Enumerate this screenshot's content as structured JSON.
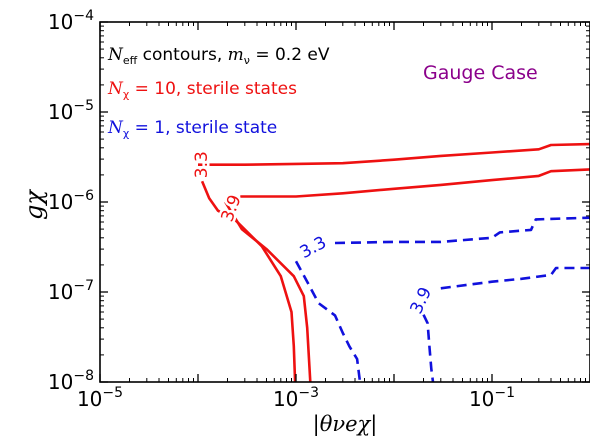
{
  "chart_data": {
    "type": "line",
    "title": "",
    "xlabel": "|θνeχ|",
    "ylabel": "gχ",
    "x_scale": "log",
    "y_scale": "log",
    "xlim": [
      1e-05,
      1.0
    ],
    "ylim": [
      1e-08,
      0.0001
    ],
    "x_ticks": [
      {
        "value": 1e-05,
        "base": "10",
        "exp": "−5"
      },
      {
        "value": 0.001,
        "base": "10",
        "exp": "−3"
      },
      {
        "value": 0.1,
        "base": "10",
        "exp": "−1"
      }
    ],
    "y_ticks": [
      {
        "value": 1e-08,
        "base": "10",
        "exp": "−8"
      },
      {
        "value": 1e-07,
        "base": "10",
        "exp": "−7"
      },
      {
        "value": 1e-06,
        "base": "10",
        "exp": "−6"
      },
      {
        "value": 1e-05,
        "base": "10",
        "exp": "−5"
      },
      {
        "value": 0.0001,
        "base": "10",
        "exp": "−4"
      }
    ],
    "grid": false,
    "legend_placement": "top-left",
    "annotations": {
      "neff_prefix": "N",
      "neff_sub": "eff",
      "neff_mid": " contours, ",
      "mnu_prefix": "m",
      "mnu_sub": "ν",
      "mnu_suffix": " = 0.2 eV",
      "red_prefix": "N",
      "red_sub": "χ",
      "red_suffix": " = 10, sterile states",
      "blue_prefix": "N",
      "blue_sub": "χ",
      "blue_suffix": " = 1, sterile state",
      "gauge_case": "Gauge Case"
    },
    "colors": {
      "red": "#ee1111",
      "blue": "#1111dd",
      "purple": "#8b008b"
    },
    "series": [
      {
        "group": "N_chi = 10",
        "contour": "3.3",
        "color": "red",
        "dash": "solid",
        "points": [
          [
            0.0001,
            2.6e-06
          ],
          [
            0.0003,
            2.6e-06
          ],
          [
            0.001,
            2.65e-06
          ],
          [
            0.003,
            2.7e-06
          ],
          [
            0.01,
            2.95e-06
          ],
          [
            0.03,
            3.25e-06
          ],
          [
            0.1,
            3.55e-06
          ],
          [
            0.3,
            3.85e-06
          ],
          [
            0.4,
            4.3e-06
          ],
          [
            1.0,
            4.4e-06
          ]
        ]
      },
      {
        "group": "N_chi = 10",
        "contour": "3.9",
        "color": "red",
        "dash": "solid",
        "points": [
          [
            0.00027,
            1.15e-06
          ],
          [
            0.001,
            1.15e-06
          ],
          [
            0.003,
            1.25e-06
          ],
          [
            0.01,
            1.4e-06
          ],
          [
            0.03,
            1.55e-06
          ],
          [
            0.1,
            1.75e-06
          ],
          [
            0.3,
            1.95e-06
          ],
          [
            0.4,
            2.2e-06
          ],
          [
            1.0,
            2.3e-06
          ]
        ]
      },
      {
        "group": "N_chi = 10",
        "contour": "3.3",
        "color": "red",
        "dash": "solid",
        "points": [
          [
            0.00011,
            1.7e-06
          ],
          [
            0.00013,
            1.1e-06
          ],
          [
            0.00016,
            8e-07
          ],
          [
            0.00024,
            6.3e-07
          ],
          [
            0.00045,
            3.2e-07
          ],
          [
            0.0007,
            1.5e-07
          ],
          [
            0.0009,
            6e-08
          ],
          [
            0.00095,
            2.5e-08
          ],
          [
            0.00098,
            1e-08
          ]
        ]
      },
      {
        "group": "N_chi = 10",
        "contour": "3.9",
        "color": "red",
        "dash": "solid",
        "points": [
          [
            0.00019,
            1e-06
          ],
          [
            0.00028,
            5e-07
          ],
          [
            0.0005,
            3e-07
          ],
          [
            0.00095,
            1.5e-07
          ],
          [
            0.0012,
            9e-08
          ],
          [
            0.0013,
            4e-08
          ],
          [
            0.0014,
            1e-08
          ]
        ]
      },
      {
        "group": "N_chi = 1",
        "contour": "3.3",
        "color": "blue",
        "dash": "dashed",
        "points": [
          [
            0.0025,
            3.5e-07
          ],
          [
            0.01,
            3.6e-07
          ],
          [
            0.03,
            3.6e-07
          ],
          [
            0.1,
            4e-07
          ],
          [
            0.12,
            4.6e-07
          ],
          [
            0.25,
            4.9e-07
          ],
          [
            0.28,
            6.4e-07
          ],
          [
            1.0,
            6.7e-07
          ]
        ]
      },
      {
        "group": "N_chi = 1",
        "contour": "3.3",
        "color": "blue",
        "dash": "dashed",
        "points": [
          [
            0.001,
            2.2e-07
          ],
          [
            0.0013,
            1.3e-07
          ],
          [
            0.0017,
            7.5e-08
          ],
          [
            0.0025,
            5.5e-08
          ],
          [
            0.003,
            3.5e-08
          ],
          [
            0.0035,
            2.5e-08
          ],
          [
            0.0042,
            1.8e-08
          ],
          [
            0.0045,
            1e-08
          ]
        ]
      },
      {
        "group": "N_chi = 1",
        "contour": "3.9",
        "color": "blue",
        "dash": "dashed",
        "points": [
          [
            0.03,
            1.1e-07
          ],
          [
            0.1,
            1.3e-07
          ],
          [
            0.2,
            1.4e-07
          ],
          [
            0.4,
            1.55e-07
          ],
          [
            0.45,
            1.85e-07
          ],
          [
            1.0,
            1.85e-07
          ]
        ]
      },
      {
        "group": "N_chi = 1",
        "contour": "3.9",
        "color": "blue",
        "dash": "dashed",
        "points": [
          [
            0.02,
            5.6e-08
          ],
          [
            0.022,
            4.5e-08
          ],
          [
            0.023,
            2.5e-08
          ],
          [
            0.024,
            1.4e-08
          ],
          [
            0.025,
            1e-08
          ]
        ]
      }
    ],
    "contour_labels": [
      {
        "text": "3.3",
        "color": "red",
        "x": 0.00011,
        "y": 2.6e-06,
        "angle": -90
      },
      {
        "text": "3.9",
        "color": "red",
        "x": 0.00022,
        "y": 8.5e-07,
        "angle": -70
      },
      {
        "text": "3.3",
        "color": "blue",
        "x": 0.0015,
        "y": 3.1e-07,
        "angle": -28
      },
      {
        "text": "3.9",
        "color": "blue",
        "x": 0.019,
        "y": 8e-08,
        "angle": -65
      }
    ]
  }
}
